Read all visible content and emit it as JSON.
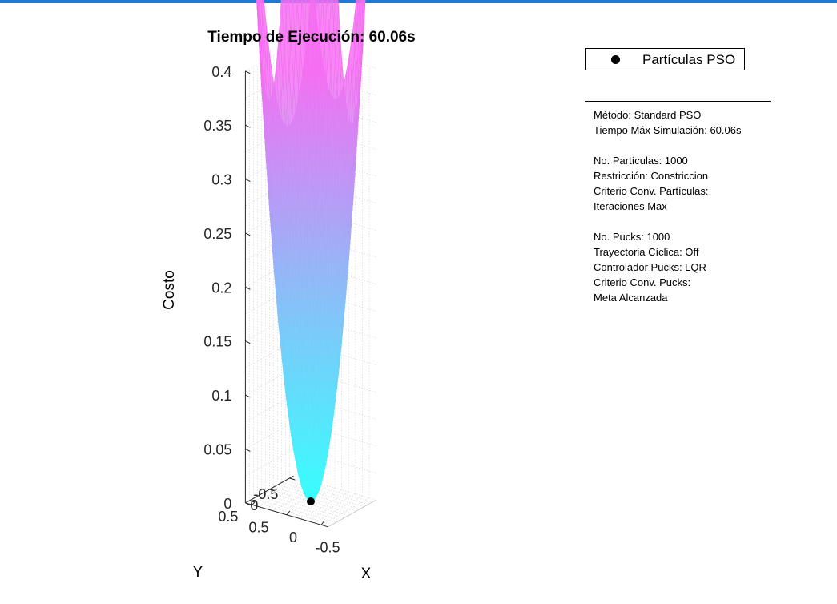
{
  "chart_data": {
    "type": "surface",
    "title": "Tiempo de Ejecución: 60.06s",
    "xlabel": "X",
    "ylabel": "Y",
    "zlabel": "Costo",
    "z_ticks": [
      "0",
      "0.05",
      "0.1",
      "0.15",
      "0.2",
      "0.25",
      "0.3",
      "0.35",
      "0.4"
    ],
    "z_range": [
      0,
      0.4
    ],
    "x_ticks": [
      "0.5",
      "0",
      "-0.5"
    ],
    "y_ticks": [
      "-0.5",
      "0",
      "0.5"
    ],
    "x_range": [
      -0.6,
      0.6
    ],
    "y_range": [
      -0.6,
      0.6
    ],
    "grid": true,
    "colormap": [
      "#33ffff",
      "#8cbaf8",
      "#f56cf2"
    ],
    "surface_function": "x^2 + y^2",
    "particles": [
      {
        "x": 0,
        "y": 0,
        "z": 0
      }
    ],
    "legend": {
      "label": "Partículas PSO",
      "location": "top-right",
      "marker_color": "#000000"
    }
  },
  "info_panel": {
    "lines": [
      "Método: Standard PSO",
      "Tiempo Máx Simulación: 60.06s",
      "",
      "No. Partículas: 1000",
      "Restricción: Constriccion",
      "Criterio Conv. Partículas:",
      "Iteraciones Max",
      "",
      "No. Pucks: 1000",
      "Trayectoria Cíclica: Off",
      "Controlador Pucks: LQR",
      "Criterio Conv. Pucks:",
      "Meta Alcanzada"
    ]
  },
  "colors": {
    "accent_bar": "#1f78d1"
  }
}
